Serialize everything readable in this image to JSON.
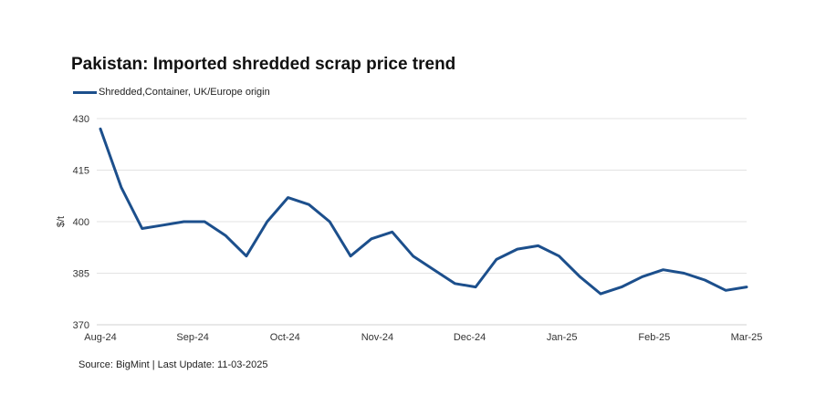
{
  "chart_data": {
    "type": "line",
    "title": "Pakistan: Imported shredded scrap price trend",
    "ylabel": "$/t",
    "xlabel": "",
    "ylim": [
      370,
      430
    ],
    "yticks": [
      370,
      385,
      400,
      415,
      430
    ],
    "xticks": [
      "Aug-24",
      "Sep-24",
      "Oct-24",
      "Nov-24",
      "Dec-24",
      "Jan-25",
      "Feb-25",
      "Mar-25"
    ],
    "grid": true,
    "legend_position": "top-left",
    "colors": {
      "series": "#1c4f8c",
      "grid": "#e3e3e3"
    },
    "series": [
      {
        "name": "Shredded,Container, UK/Europe origin",
        "values": [
          427,
          410,
          398,
          399,
          400,
          400,
          396,
          390,
          400,
          407,
          405,
          400,
          390,
          395,
          397,
          390,
          386,
          382,
          381,
          389,
          392,
          393,
          390,
          384,
          379,
          381,
          384,
          386,
          385,
          383,
          380,
          381
        ]
      }
    ]
  },
  "source": "Source: BigMint | Last Update: 11-03-2025"
}
